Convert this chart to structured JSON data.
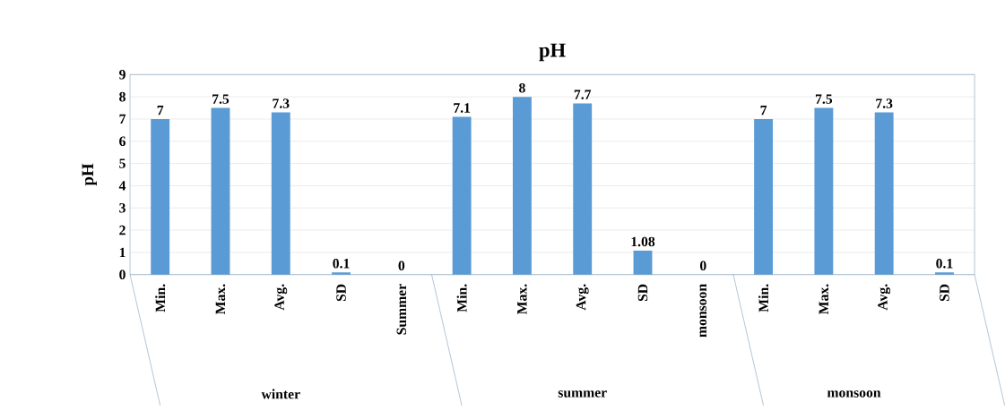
{
  "chart_data": {
    "type": "bar",
    "title": "pH",
    "ylabel": "pH",
    "categories": [
      "Min.",
      "Max.",
      "Avg.",
      "SD",
      "Summer",
      "Min.",
      "Max.",
      "Avg.",
      "SD",
      "monsoon",
      "Min.",
      "Max.",
      "Avg.",
      "SD"
    ],
    "values": [
      7,
      7.5,
      7.3,
      0.1,
      0,
      7.1,
      8,
      7.7,
      1.08,
      0,
      7,
      7.5,
      7.3,
      0.1
    ],
    "color": "#5b9bd5",
    "ylim": [
      0,
      9
    ],
    "yticks": [
      0,
      1,
      2,
      3,
      4,
      5,
      6,
      7,
      8,
      9
    ],
    "grid": "y",
    "data_labels": true,
    "annotations": [
      "winter",
      "summer",
      "monsoon"
    ]
  }
}
